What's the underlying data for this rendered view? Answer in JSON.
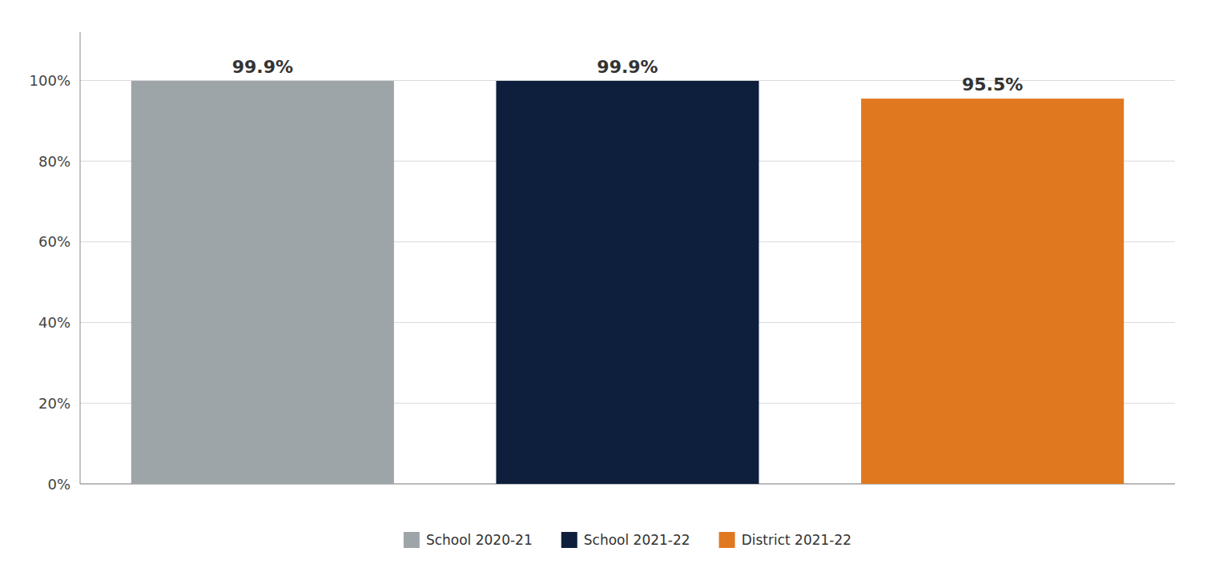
{
  "chart_data": {
    "type": "bar",
    "categories": [
      "School 2020-21",
      "School 2021-22",
      "District 2021-22"
    ],
    "values": [
      99.9,
      99.9,
      95.5
    ],
    "value_labels": [
      "99.9%",
      "99.9%",
      "95.5%"
    ],
    "colors": [
      "#9ea5a8",
      "#0d1f3c",
      "#e07820"
    ],
    "ylim": [
      0,
      112
    ],
    "yticks": [
      {
        "value": 0,
        "label": "0%"
      },
      {
        "value": 20,
        "label": "20%"
      },
      {
        "value": 40,
        "label": "40%"
      },
      {
        "value": 60,
        "label": "60%"
      },
      {
        "value": 80,
        "label": "80%"
      },
      {
        "value": 100,
        "label": "100%"
      }
    ],
    "grid": true,
    "data_labels": true,
    "tick_labels": "y",
    "legend": "bottom"
  }
}
